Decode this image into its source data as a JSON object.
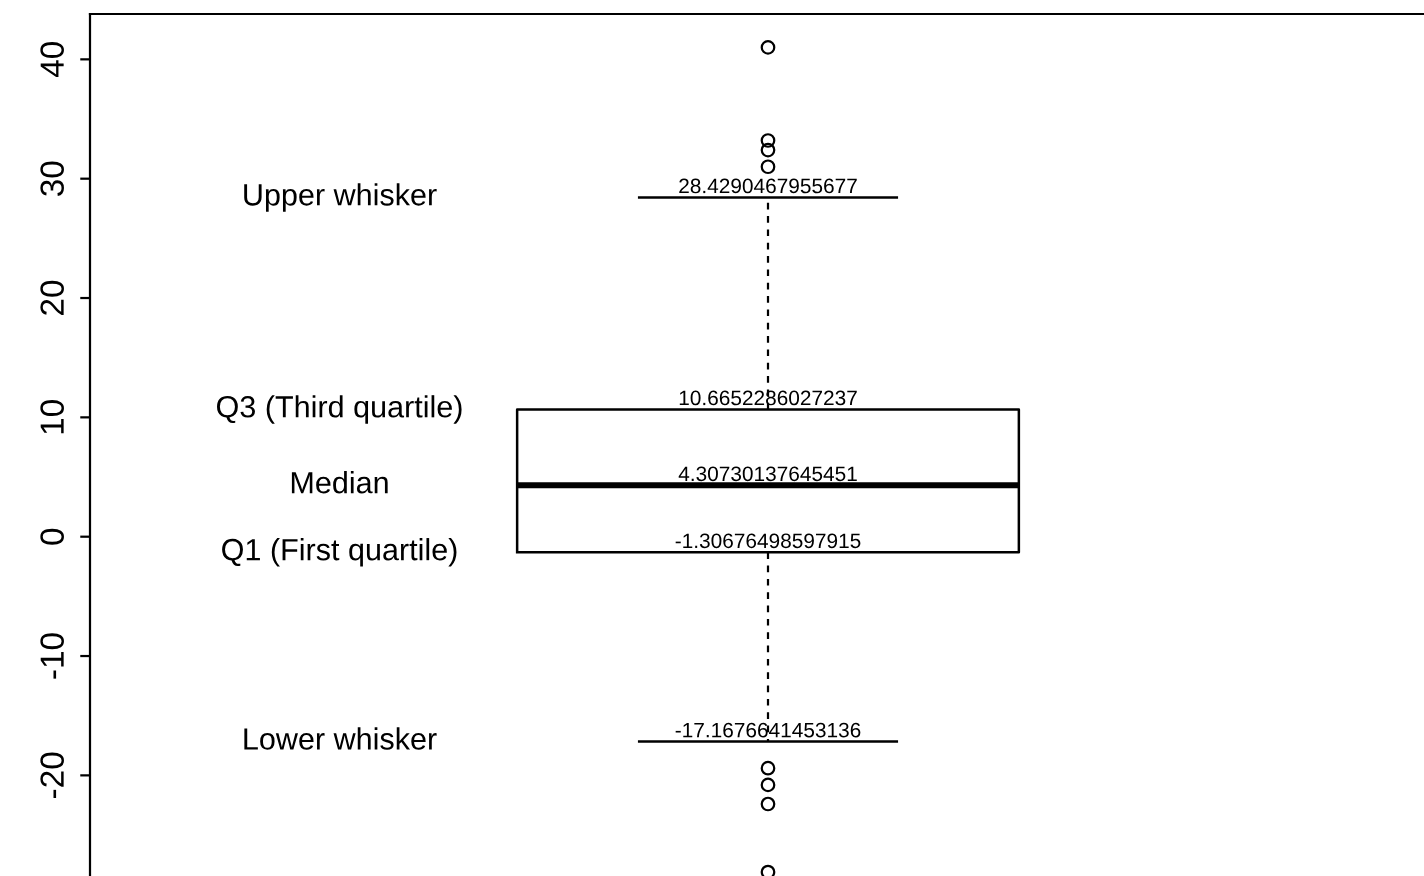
{
  "chart_data": {
    "type": "box",
    "categories": [
      null
    ],
    "boxes": [
      {
        "low": -17.1676641453136,
        "q1": -1.30676498597915,
        "median": 4.30730137645451,
        "q3": 10.6652286027237,
        "high": 28.4290467955677,
        "outliers": [
          41.0,
          33.2,
          32.4,
          31.0,
          -19.4,
          -20.8,
          -22.4,
          -28.1
        ]
      }
    ],
    "ylim": [
      -28.6,
      43.8
    ],
    "yticks": [
      -20,
      -10,
      0,
      10,
      20,
      30,
      40
    ],
    "annotations": [
      {
        "text": "28.4290467955677",
        "y": 28.4290467955677
      },
      {
        "text": "10.6652286027237",
        "y": 10.6652286027237
      },
      {
        "text": "4.30730137645451",
        "y": 4.30730137645451
      },
      {
        "text": "-1.30676498597915",
        "y": -1.30676498597915
      },
      {
        "text": "-17.1676641453136",
        "y": -17.1676641453136
      },
      "Upper whisker",
      "Q3 (Third quartile)",
      "Median",
      "Q1 (First quartile)",
      "Lower whisker"
    ],
    "grid": false,
    "legend": false
  }
}
